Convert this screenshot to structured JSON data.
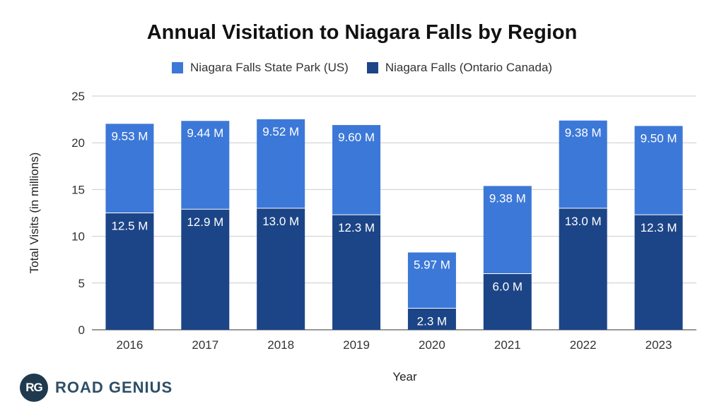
{
  "chart_data": {
    "type": "bar",
    "stacked": true,
    "title": "Annual Visitation to Niagara Falls by Region",
    "xlabel": "Year",
    "ylabel": "Total Visits (in millions)",
    "ylim": [
      0,
      25
    ],
    "yticks": [
      "0",
      "5",
      "10",
      "15",
      "20",
      "25"
    ],
    "categories": [
      "2016",
      "2017",
      "2018",
      "2019",
      "2020",
      "2021",
      "2022",
      "2023"
    ],
    "series": [
      {
        "name": "Niagara Falls (Ontario Canada)",
        "color": "#1c4587",
        "values": [
          12.5,
          12.9,
          13.0,
          12.3,
          2.3,
          6.0,
          13.0,
          12.3
        ],
        "labels": [
          "12.5 M",
          "12.9 M",
          "13.0 M",
          "12.3 M",
          "2.3 M",
          "6.0 M",
          "13.0 M",
          "12.3 M"
        ]
      },
      {
        "name": "Niagara Falls State Park (US)",
        "color": "#3c78d8",
        "values": [
          9.53,
          9.44,
          9.52,
          9.6,
          5.97,
          9.38,
          9.38,
          9.5
        ],
        "labels": [
          "9.53 M",
          "9.44 M",
          "9.52 M",
          "9.60 M",
          "5.97 M",
          "9.38 M",
          "9.38 M",
          "9.50 M"
        ]
      }
    ],
    "legend_position": "top"
  },
  "legend": {
    "us_label": "Niagara Falls State Park (US)",
    "ca_label": "Niagara Falls (Ontario Canada)"
  },
  "brand": {
    "logo_text": "RG",
    "name": "ROAD GENIUS"
  }
}
